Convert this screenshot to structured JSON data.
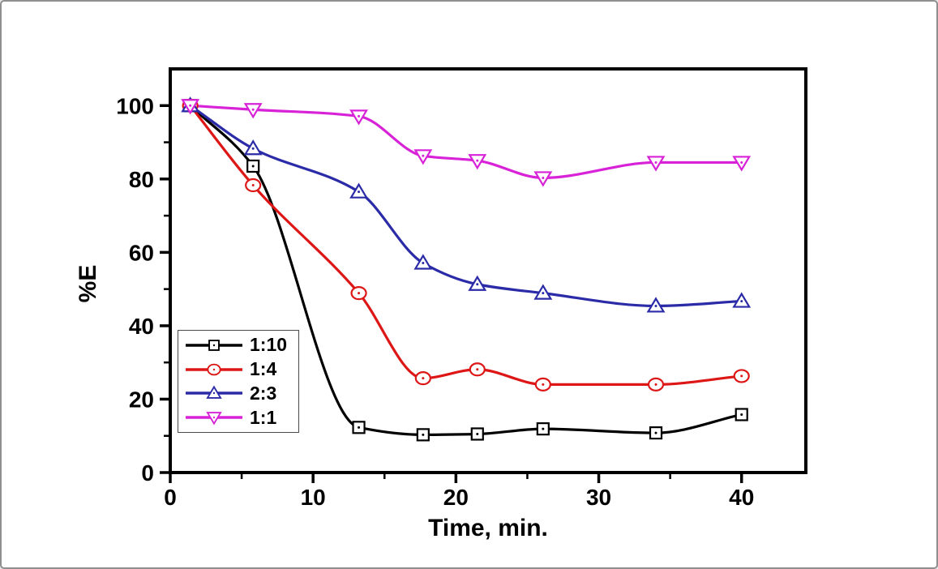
{
  "window": {
    "background": "#ffffff",
    "border_color": "#8f8f8f"
  },
  "chart_data": {
    "type": "line",
    "title": "",
    "xlabel": "Time, min.",
    "ylabel": "%E",
    "xlim": [
      0,
      44.5
    ],
    "ylim": [
      0,
      110
    ],
    "grid": false,
    "legend_position": "lower-left-inside",
    "axis_color": "#000000",
    "x_major_ticks": [
      0,
      10,
      20,
      30,
      40
    ],
    "x_minor_ticks": [
      5,
      15,
      25,
      35
    ],
    "y_major_ticks": [
      0,
      20,
      40,
      60,
      80,
      100
    ],
    "y_minor_ticks": [
      10,
      30,
      50,
      70,
      90
    ],
    "x": [
      1.4,
      5.8,
      13.2,
      17.7,
      21.5,
      26.1,
      34,
      40
    ],
    "series": [
      {
        "name": "1:10",
        "color": "#000000",
        "marker": "square",
        "values": [
          100,
          83.5,
          12.3,
          10.3,
          10.5,
          11.9,
          10.8,
          15.8
        ]
      },
      {
        "name": "1:4",
        "color": "#dd1616",
        "marker": "circle",
        "values": [
          100,
          78.3,
          48.9,
          25.7,
          28.1,
          24.0,
          24.0,
          26.3
        ]
      },
      {
        "name": "2:3",
        "color": "#2b2ba8",
        "marker": "triangle-up",
        "values": [
          100,
          88.3,
          76.5,
          57.1,
          51.3,
          48.9,
          45.4,
          46.7
        ]
      },
      {
        "name": "1:1",
        "color": "#d822d8",
        "marker": "triangle-down",
        "values": [
          100,
          98.9,
          97.1,
          86.3,
          85.0,
          80.3,
          84.5,
          84.5
        ]
      }
    ]
  }
}
